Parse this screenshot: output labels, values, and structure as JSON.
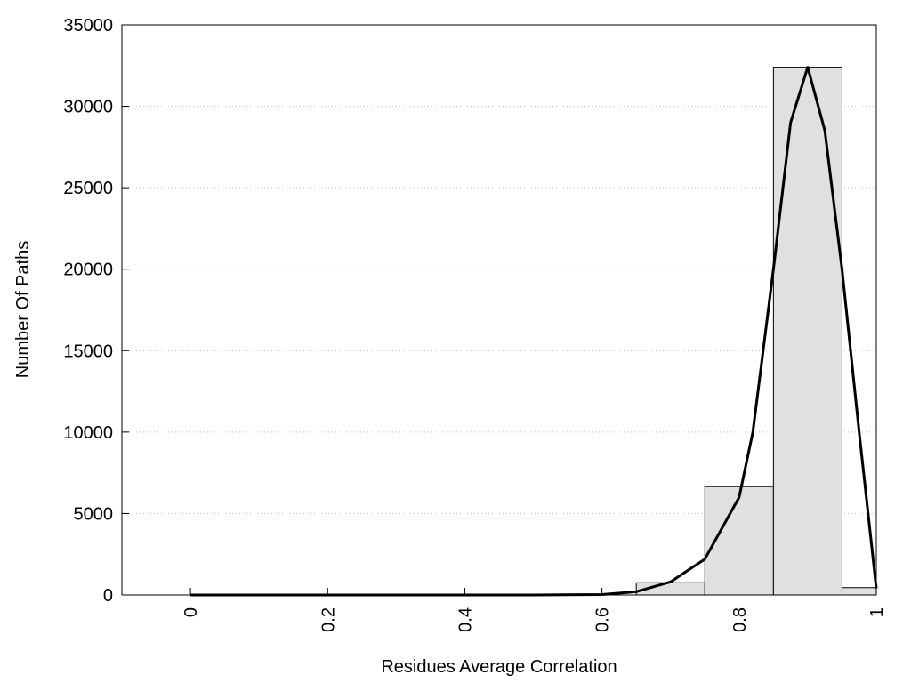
{
  "chart_data": {
    "type": "histogram",
    "xlabel": "Residues Average Correlation",
    "ylabel": "Number Of Paths",
    "bins": [
      0.65,
      0.75,
      0.85,
      0.95,
      1.0
    ],
    "values": [
      750,
      6650,
      32400,
      450
    ],
    "color": "#e0e0e0",
    "curve": {
      "color": "#000000",
      "x": [
        0,
        0.1,
        0.2,
        0.3,
        0.4,
        0.5,
        0.6,
        0.65,
        0.7,
        0.75,
        0.8,
        0.82,
        0.85,
        0.875,
        0.9,
        0.925,
        0.95,
        0.975,
        1.0
      ],
      "values": [
        0,
        0,
        0,
        0,
        0,
        0,
        30,
        200,
        800,
        2200,
        6000,
        10000,
        20000,
        29000,
        32400,
        28500,
        20000,
        10000,
        400
      ]
    },
    "xlim": [
      -0.1,
      1
    ],
    "xticks": [
      0,
      0.2,
      0.4,
      0.6,
      0.8,
      1
    ],
    "ylim": [
      0,
      35000
    ],
    "yticks": [
      0,
      5000,
      10000,
      15000,
      20000,
      25000,
      30000,
      35000
    ],
    "grid": true
  }
}
